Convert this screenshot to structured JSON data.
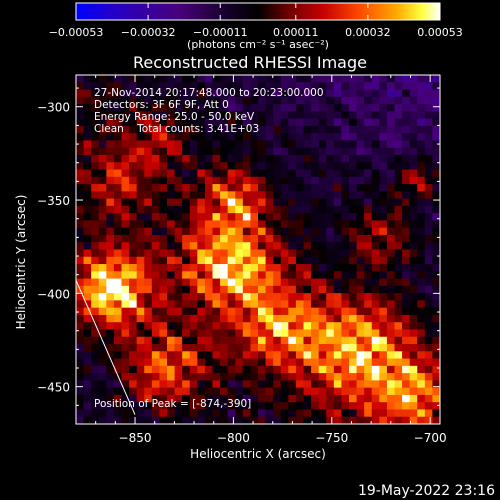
{
  "chart_data": {
    "type": "heatmap",
    "title": "Reconstructed RHESSI Image",
    "xlabel": "Heliocentric X (arcsec)",
    "ylabel": "Heliocentric Y (arcsec)",
    "xlim": [
      -880,
      -695
    ],
    "ylim": [
      -470,
      -283
    ],
    "xticks": [
      -850,
      -800,
      -750,
      -700
    ],
    "xtick_labels": [
      "−850",
      "−800",
      "−750",
      "−700"
    ],
    "yticks": [
      -450,
      -400,
      -350,
      -300
    ],
    "ytick_labels": [
      "−450",
      "−400",
      "−350",
      "−300"
    ],
    "colorbar": {
      "min": -0.00053,
      "max": 0.00053,
      "ticks": [
        -0.00053,
        -0.00032,
        -0.00011,
        0.00011,
        0.00032,
        0.00053
      ],
      "tick_labels": [
        "−0.00053",
        "−0.00032",
        "−0.00011",
        "0.00011",
        "0.00032",
        "0.00053"
      ],
      "units_label": "(photons cm⁻² s⁻¹ asec⁻²)",
      "colormap": [
        "#0000ff",
        "#3b0096",
        "#4a0078",
        "#000000",
        "#7a0000",
        "#d40000",
        "#ff4a00",
        "#ffb400",
        "#ffff50",
        "#ffffff"
      ]
    },
    "annotations": {
      "time_range": "27-Nov-2014 20:17:48.000 to 20:23:00.000",
      "detectors": "Detectors: 3F 6F 9F, Att 0",
      "energy_range": "Energy Range: 25.0 - 50.0 keV",
      "method_counts": "Clean    Total counts: 3.41E+03",
      "peak": "Position of Peak = [-874,-390]"
    },
    "peak_position": [
      -874,
      -390
    ],
    "bright_regions": [
      {
        "x": -862,
        "y": -398,
        "amp": 1.0,
        "r": 18
      },
      {
        "x": -800,
        "y": -385,
        "amp": 0.75,
        "r": 22
      },
      {
        "x": -800,
        "y": -350,
        "amp": 0.55,
        "r": 16
      },
      {
        "x": -775,
        "y": -418,
        "amp": 0.55,
        "r": 20
      },
      {
        "x": -835,
        "y": -440,
        "amp": 0.6,
        "r": 20
      },
      {
        "x": -735,
        "y": -430,
        "amp": 0.75,
        "r": 25
      },
      {
        "x": -708,
        "y": -455,
        "amp": 0.6,
        "r": 18
      },
      {
        "x": -840,
        "y": -318,
        "amp": 0.35,
        "r": 14
      },
      {
        "x": -860,
        "y": -340,
        "amp": 0.3,
        "r": 14
      },
      {
        "x": -725,
        "y": -370,
        "amp": 0.35,
        "r": 16
      },
      {
        "x": -705,
        "y": -340,
        "amp": 0.4,
        "r": 12
      }
    ],
    "limb_line": [
      [
        -880,
        -393
      ],
      [
        -850,
        -465
      ]
    ],
    "timestamp": "19-May-2022 23:16"
  }
}
